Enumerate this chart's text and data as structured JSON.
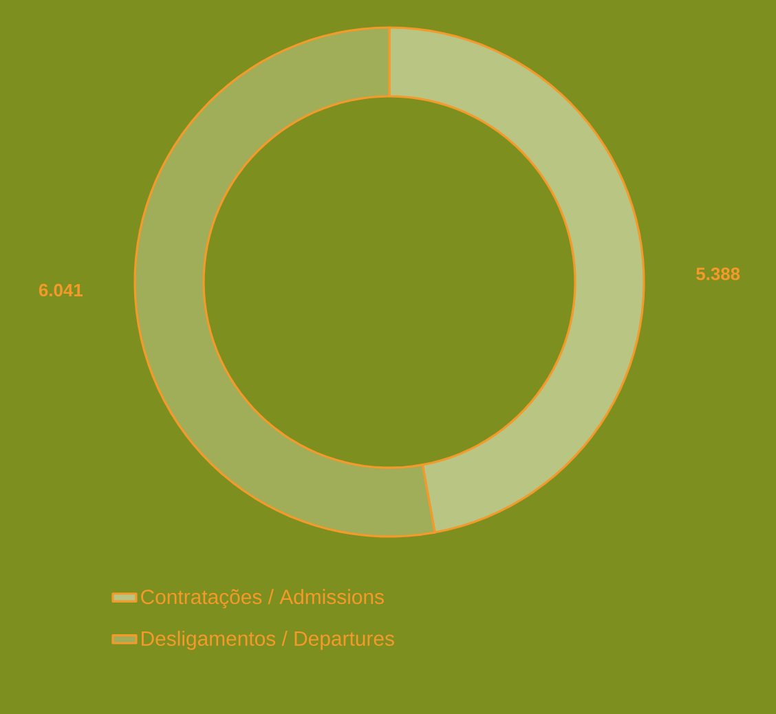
{
  "chart_data": {
    "type": "donut",
    "categories": [
      "Contratações / Admissions",
      "Desligamentos / Departures"
    ],
    "values": [
      5388,
      6041
    ],
    "value_labels": [
      "5.388",
      "6.041"
    ],
    "colors": [
      "#b9c582",
      "#a0ae5a"
    ],
    "legend": "bottom"
  }
}
